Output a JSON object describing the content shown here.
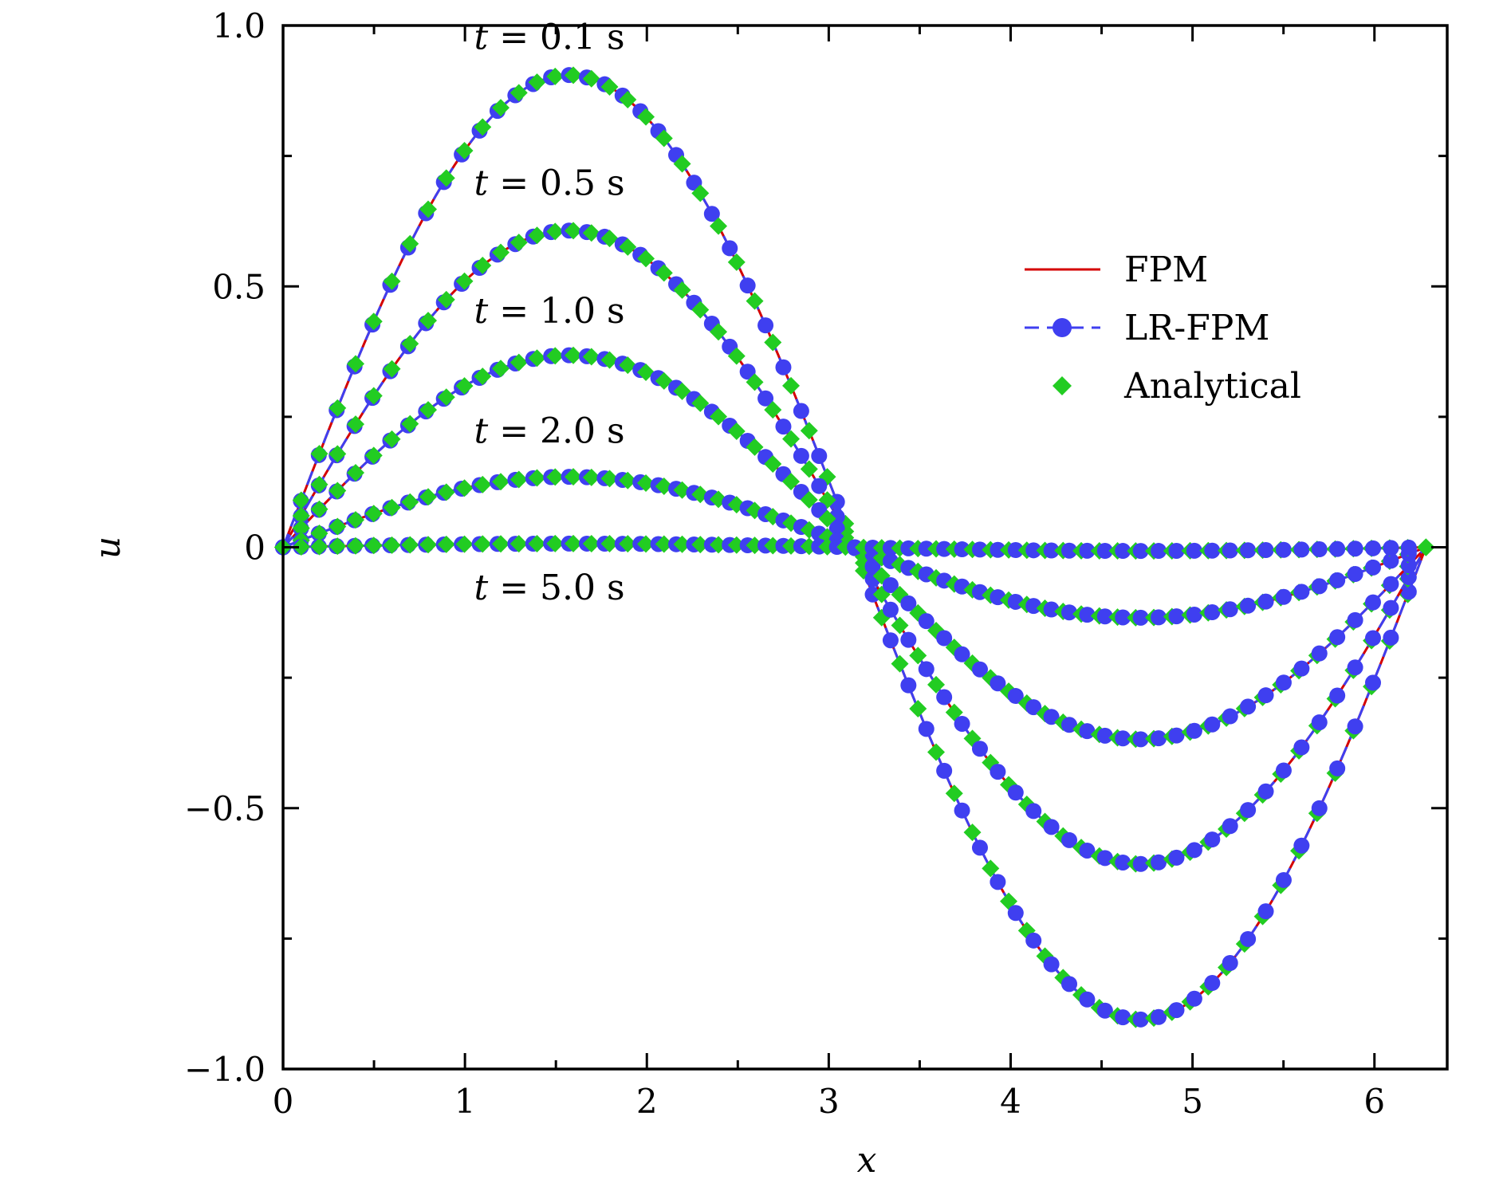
{
  "chart_data": {
    "type": "line",
    "title": "",
    "xlabel": "x",
    "ylabel": "u",
    "xlim": [
      0,
      6.4
    ],
    "ylim": [
      -1.0,
      1.0
    ],
    "x_ticks": [
      0,
      1,
      2,
      3,
      4,
      5,
      6
    ],
    "x_tick_labels": [
      "0",
      "1",
      "2",
      "3",
      "4",
      "5",
      "6"
    ],
    "x_minor_ticks": [
      0.5,
      1.5,
      2.5,
      3.5,
      4.5,
      5.5
    ],
    "y_ticks": [
      -1.0,
      -0.5,
      0,
      0.5,
      1.0
    ],
    "y_tick_labels": [
      "−1.0",
      "−0.5",
      "0",
      "0.5",
      "1.0"
    ],
    "y_minor_ticks": [
      -0.75,
      -0.25,
      0.25,
      0.75
    ],
    "grid": false,
    "legend_position": "right",
    "legend": [
      {
        "label": "FPM",
        "color": "#d40000",
        "style": "solid-line"
      },
      {
        "label": "LR-FPM",
        "color": "#3f3ff0",
        "style": "dashed-line-circle"
      },
      {
        "label": "Analytical",
        "color": "#22cc22",
        "style": "diamond"
      }
    ],
    "annotations": [
      {
        "var": "t",
        "text": " = 0.1 s",
        "x": 1.05,
        "y": 0.955
      },
      {
        "var": "t",
        "text": " = 0.5 s",
        "x": 1.05,
        "y": 0.675
      },
      {
        "var": "t",
        "text": " = 1.0 s",
        "x": 1.05,
        "y": 0.43
      },
      {
        "var": "t",
        "text": " = 2.0 s",
        "x": 1.05,
        "y": 0.2
      },
      {
        "var": "t",
        "text": " = 5.0 s",
        "x": 1.05,
        "y": -0.1
      }
    ],
    "model": "u(x,t) = A(t) * sin(x), x in [0, 2pi]",
    "series": [
      {
        "name": "t = 0.1 s",
        "amplitude": 0.905
      },
      {
        "name": "t = 0.5 s",
        "amplitude": 0.607
      },
      {
        "name": "t = 1.0 s",
        "amplitude": 0.368
      },
      {
        "name": "t = 2.0 s",
        "amplitude": 0.135
      },
      {
        "name": "t = 5.0 s",
        "amplitude": 0.007
      }
    ],
    "x_samples": {
      "start": 0,
      "end": 6.283,
      "count": 64
    }
  }
}
